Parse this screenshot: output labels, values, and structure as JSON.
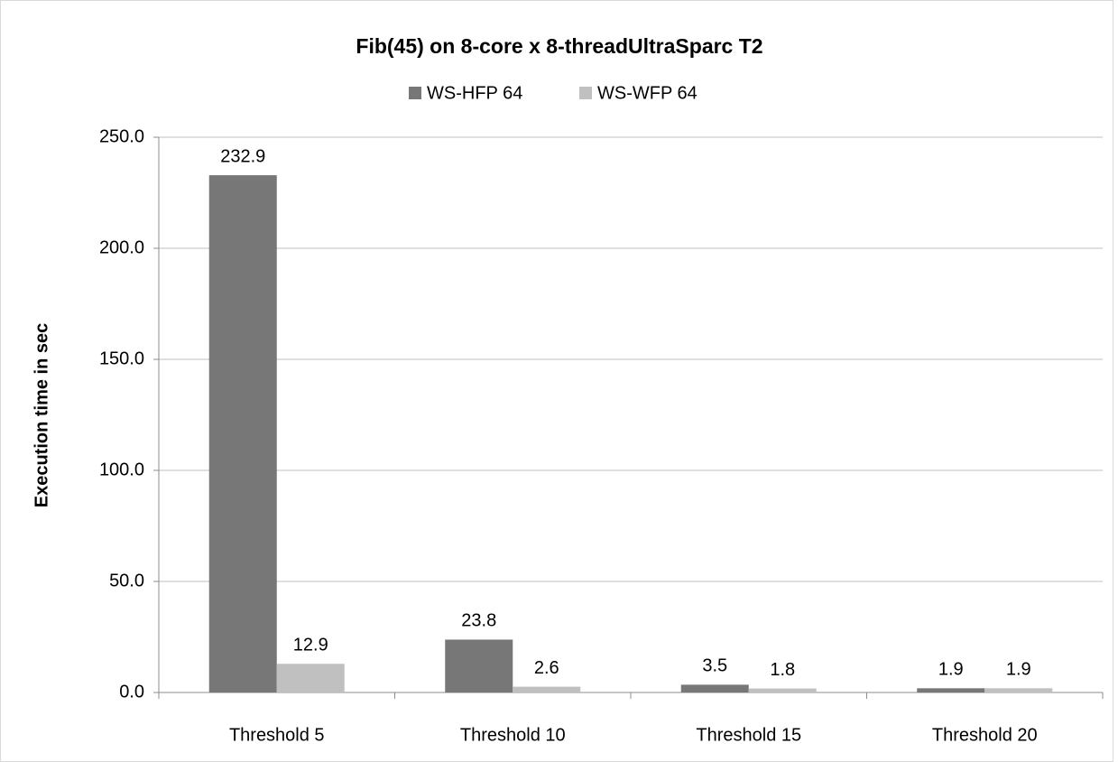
{
  "chart_data": {
    "type": "bar",
    "title": "Fib(45) on 8-core x 8-threadUltraSparc T2",
    "y_label": "Execution time in sec",
    "categories": [
      "Threshold 5",
      "Threshold 10",
      "Threshold 15",
      "Threshold 20"
    ],
    "series": [
      {
        "name": "WS-HFP 64",
        "color": "#777777",
        "values": [
          232.9,
          23.8,
          3.5,
          1.9
        ]
      },
      {
        "name": "WS-WFP 64",
        "color": "#c0c0c0",
        "values": [
          12.9,
          2.6,
          1.8,
          1.9
        ]
      }
    ],
    "ylim": [
      0,
      250
    ],
    "yticks": [
      {
        "value": 0,
        "label": "0.0"
      },
      {
        "value": 50,
        "label": "50.0"
      },
      {
        "value": 100,
        "label": "100.0"
      },
      {
        "value": 150,
        "label": "150.0"
      },
      {
        "value": 200,
        "label": "200.0"
      },
      {
        "value": 250,
        "label": "250.0"
      }
    ],
    "grid": true,
    "legend": "top"
  }
}
